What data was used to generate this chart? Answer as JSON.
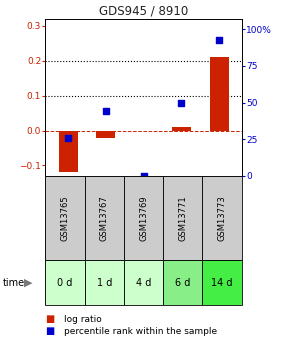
{
  "title": "GDS945 / 8910",
  "samples": [
    "GSM13765",
    "GSM13767",
    "GSM13769",
    "GSM13771",
    "GSM13773"
  ],
  "time_labels": [
    "0 d",
    "1 d",
    "4 d",
    "6 d",
    "14 d"
  ],
  "log_ratio": [
    -0.12,
    -0.02,
    0.0,
    0.01,
    0.21
  ],
  "percentile_rank": [
    26,
    44,
    0,
    50,
    93
  ],
  "ylim_left": [
    -0.13,
    0.32
  ],
  "ylim_right": [
    0,
    107
  ],
  "yticks_left": [
    -0.1,
    0.0,
    0.1,
    0.2,
    0.3
  ],
  "yticks_right": [
    0,
    25,
    50,
    75,
    100
  ],
  "ytick_labels_right": [
    "0",
    "25",
    "50",
    "75",
    "100%"
  ],
  "bar_color": "#cc2200",
  "dot_color": "#0000cc",
  "bar_width": 0.5,
  "hline_y": 0.0,
  "dotted_lines": [
    0.1,
    0.2
  ],
  "background_plot": "#ffffff",
  "background_gsm": "#cccccc",
  "background_time_light": "#ccffcc",
  "background_time_medium": "#88ee88",
  "background_time_bright": "#44ee44",
  "title_color": "#222222",
  "left_tick_color": "#cc2200",
  "right_tick_color": "#0000cc",
  "time_highlight_indices": [
    3,
    4
  ],
  "time_brightest_index": 4
}
